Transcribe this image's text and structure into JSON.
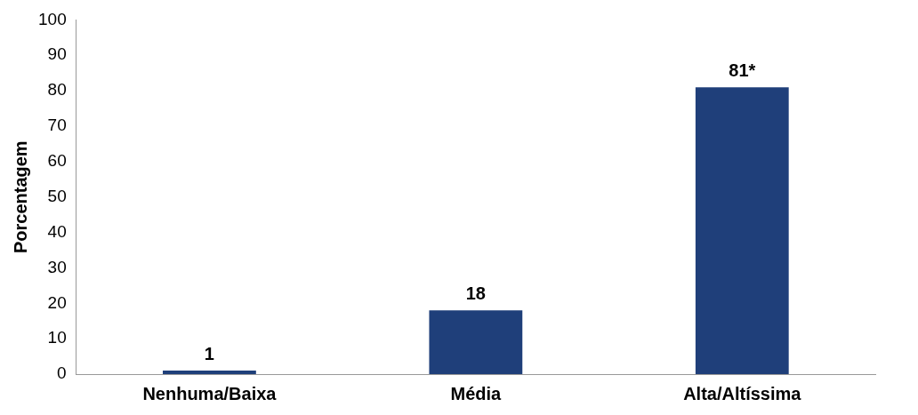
{
  "chart_data": {
    "type": "bar",
    "ylabel": "Porcentagem",
    "categories": [
      "Nenhuma/Baixa",
      "Média",
      "Alta/Altíssima"
    ],
    "values": [
      1,
      18,
      81
    ],
    "value_labels": [
      "1",
      "18",
      "81*"
    ],
    "color": "#1f3f7a",
    "ylim": [
      0,
      100
    ],
    "yticks": [
      0,
      10,
      20,
      30,
      40,
      50,
      60,
      70,
      80,
      90,
      100
    ],
    "grid": false,
    "legend": false
  }
}
